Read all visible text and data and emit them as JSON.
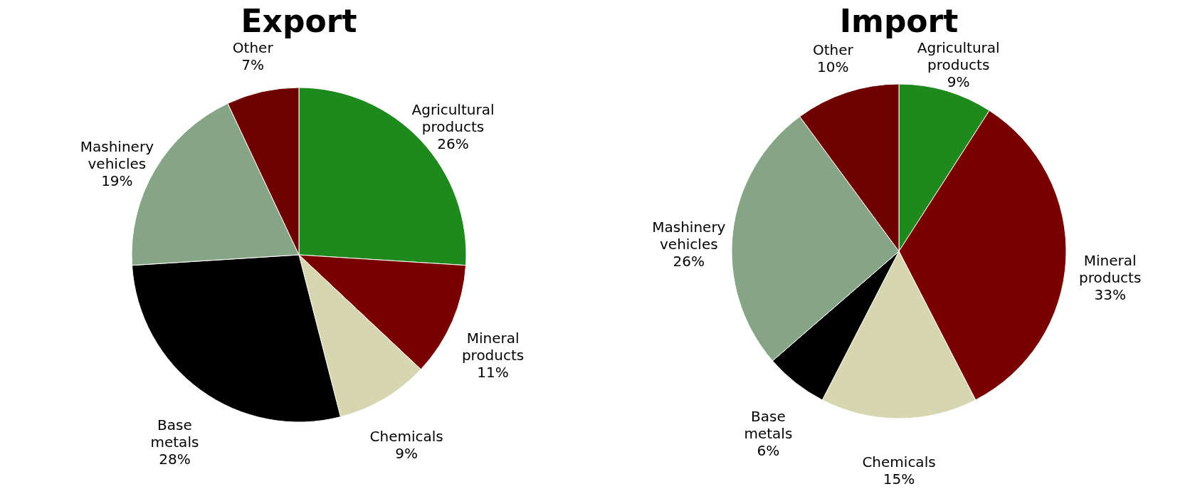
{
  "chart_data": [
    {
      "type": "pie",
      "title": "Export",
      "categories": [
        "Agricultural products",
        "Mineral products",
        "Chemicals",
        "Base metals",
        "Mashinery vehicles",
        "Other"
      ],
      "values": [
        26,
        11,
        9,
        28,
        19,
        7
      ],
      "value_labels": [
        "26%",
        "11%",
        "9%",
        "28%",
        "19%",
        "7%"
      ],
      "colors": [
        "#1e8a1e",
        "#7a0000",
        "#d6d6b0",
        "#000000",
        "#86a586",
        "#6e0000"
      ]
    },
    {
      "type": "pie",
      "title": "Import",
      "categories": [
        "Agricultural products",
        "Mineral products",
        "Chemicals",
        "Base metals",
        "Mashinery vehicles",
        "Other"
      ],
      "values": [
        9,
        33,
        15,
        6,
        26,
        10
      ],
      "value_labels": [
        "9%",
        "33%",
        "15%",
        "6%",
        "26%",
        "10%"
      ],
      "colors": [
        "#1e8a1e",
        "#7a0000",
        "#d6d6b0",
        "#000000",
        "#86a586",
        "#6e0000"
      ]
    }
  ]
}
